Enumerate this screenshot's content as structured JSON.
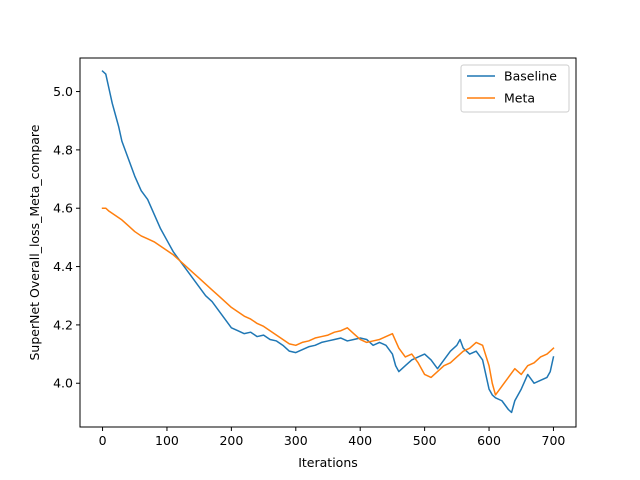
{
  "chart_data": {
    "type": "line",
    "title": "",
    "xlabel": "Iterations",
    "ylabel": "SuperNet Overall_loss_Meta_compare",
    "xlim": [
      -35,
      735
    ],
    "ylim": [
      3.85,
      5.115
    ],
    "xticks": [
      0,
      100,
      200,
      300,
      400,
      500,
      600,
      700
    ],
    "yticks": [
      4.0,
      4.2,
      4.4,
      4.6,
      4.8,
      5.0
    ],
    "ytick_labels": [
      "4.0",
      "4.2",
      "4.4",
      "4.6",
      "4.8",
      "5.0"
    ],
    "grid": false,
    "legend": {
      "position": "top-right"
    },
    "series": [
      {
        "name": "Baseline",
        "color": "#1f77b4",
        "x": [
          0,
          5,
          10,
          15,
          20,
          25,
          30,
          40,
          50,
          60,
          70,
          80,
          90,
          100,
          110,
          120,
          130,
          140,
          150,
          160,
          170,
          180,
          190,
          200,
          210,
          220,
          230,
          240,
          250,
          260,
          270,
          280,
          290,
          300,
          310,
          320,
          330,
          340,
          350,
          360,
          370,
          380,
          390,
          400,
          410,
          420,
          430,
          440,
          450,
          455,
          460,
          470,
          480,
          490,
          500,
          510,
          520,
          530,
          540,
          550,
          555,
          560,
          570,
          580,
          590,
          600,
          605,
          610,
          620,
          630,
          635,
          640,
          650,
          660,
          670,
          680,
          690,
          695,
          700
        ],
        "values": [
          5.07,
          5.06,
          5.01,
          4.96,
          4.92,
          4.88,
          4.83,
          4.77,
          4.71,
          4.66,
          4.63,
          4.58,
          4.53,
          4.49,
          4.45,
          4.42,
          4.39,
          4.36,
          4.33,
          4.3,
          4.28,
          4.25,
          4.22,
          4.19,
          4.18,
          4.17,
          4.175,
          4.16,
          4.165,
          4.15,
          4.145,
          4.13,
          4.11,
          4.105,
          4.115,
          4.125,
          4.13,
          4.14,
          4.145,
          4.15,
          4.155,
          4.145,
          4.15,
          4.155,
          4.15,
          4.13,
          4.14,
          4.13,
          4.1,
          4.06,
          4.04,
          4.06,
          4.08,
          4.09,
          4.1,
          4.08,
          4.05,
          4.08,
          4.11,
          4.13,
          4.15,
          4.12,
          4.1,
          4.11,
          4.08,
          3.98,
          3.96,
          3.95,
          3.94,
          3.91,
          3.9,
          3.94,
          3.98,
          4.03,
          4.0,
          4.01,
          4.02,
          4.04,
          4.09
        ]
      },
      {
        "name": "Meta",
        "color": "#ff7f0e",
        "x": [
          0,
          5,
          10,
          20,
          30,
          40,
          50,
          60,
          70,
          80,
          90,
          100,
          110,
          120,
          130,
          140,
          150,
          160,
          170,
          180,
          190,
          200,
          210,
          220,
          230,
          240,
          250,
          260,
          270,
          280,
          290,
          300,
          310,
          320,
          330,
          340,
          350,
          360,
          370,
          380,
          390,
          400,
          410,
          420,
          430,
          440,
          450,
          460,
          470,
          480,
          490,
          500,
          510,
          520,
          530,
          540,
          550,
          560,
          570,
          580,
          590,
          600,
          605,
          610,
          620,
          630,
          640,
          650,
          660,
          670,
          680,
          690,
          695,
          700
        ],
        "values": [
          4.6,
          4.6,
          4.59,
          4.575,
          4.56,
          4.54,
          4.52,
          4.505,
          4.495,
          4.485,
          4.47,
          4.455,
          4.44,
          4.42,
          4.4,
          4.38,
          4.36,
          4.34,
          4.32,
          4.3,
          4.28,
          4.26,
          4.245,
          4.23,
          4.22,
          4.205,
          4.195,
          4.18,
          4.165,
          4.15,
          4.135,
          4.13,
          4.14,
          4.145,
          4.155,
          4.16,
          4.165,
          4.175,
          4.18,
          4.19,
          4.17,
          4.15,
          4.14,
          4.145,
          4.15,
          4.16,
          4.17,
          4.12,
          4.09,
          4.1,
          4.07,
          4.03,
          4.02,
          4.04,
          4.06,
          4.07,
          4.09,
          4.11,
          4.12,
          4.14,
          4.13,
          4.06,
          4.0,
          3.96,
          3.99,
          4.02,
          4.05,
          4.03,
          4.06,
          4.07,
          4.09,
          4.1,
          4.11,
          4.12
        ]
      }
    ]
  }
}
